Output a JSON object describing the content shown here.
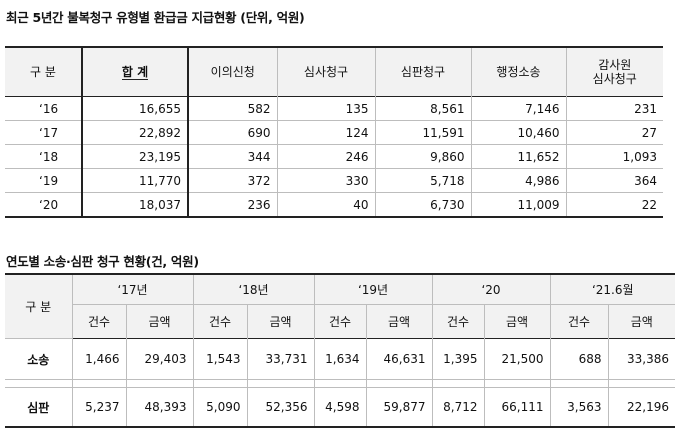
{
  "table1": {
    "title": "최근 5년간 불복청구 유형별 환급금 지급현황 (단위, 억원)",
    "headers": [
      "구  분",
      "합  계",
      "이의신청",
      "심사청구",
      "심판청구",
      "행정소송",
      "감사원\n심사청구"
    ],
    "rows": [
      [
        "‘16",
        "16,655",
        "582",
        "135",
        "8,561",
        "7,146",
        "231"
      ],
      [
        "‘17",
        "22,892",
        "690",
        "124",
        "11,591",
        "10,460",
        "27"
      ],
      [
        "‘18",
        "23,195",
        "344",
        "246",
        "9,860",
        "11,652",
        "1,093"
      ],
      [
        "‘19",
        "11,770",
        "372",
        "330",
        "5,718",
        "4,986",
        "364"
      ],
      [
        "‘20",
        "18,037",
        "236",
        "40",
        "6,730",
        "11,009",
        "22"
      ]
    ]
  },
  "table2": {
    "title": "연도별 소송·심판 청구 현황(건, 억원)",
    "rowhead": "구  분",
    "years": [
      "‘17년",
      "‘18년",
      "‘19년",
      "‘20",
      "‘21.6월"
    ],
    "subheads": [
      "건수",
      "금액"
    ],
    "rows": [
      {
        "label": "소송",
        "values": [
          "1,466",
          "29,403",
          "1,543",
          "33,731",
          "1,634",
          "46,631",
          "1,395",
          "21,500",
          "688",
          "33,386"
        ]
      },
      {
        "label": "심판",
        "values": [
          "5,237",
          "48,393",
          "5,090",
          "52,356",
          "4,598",
          "59,877",
          "8,712",
          "66,111",
          "3,563",
          "22,196"
        ]
      }
    ]
  }
}
